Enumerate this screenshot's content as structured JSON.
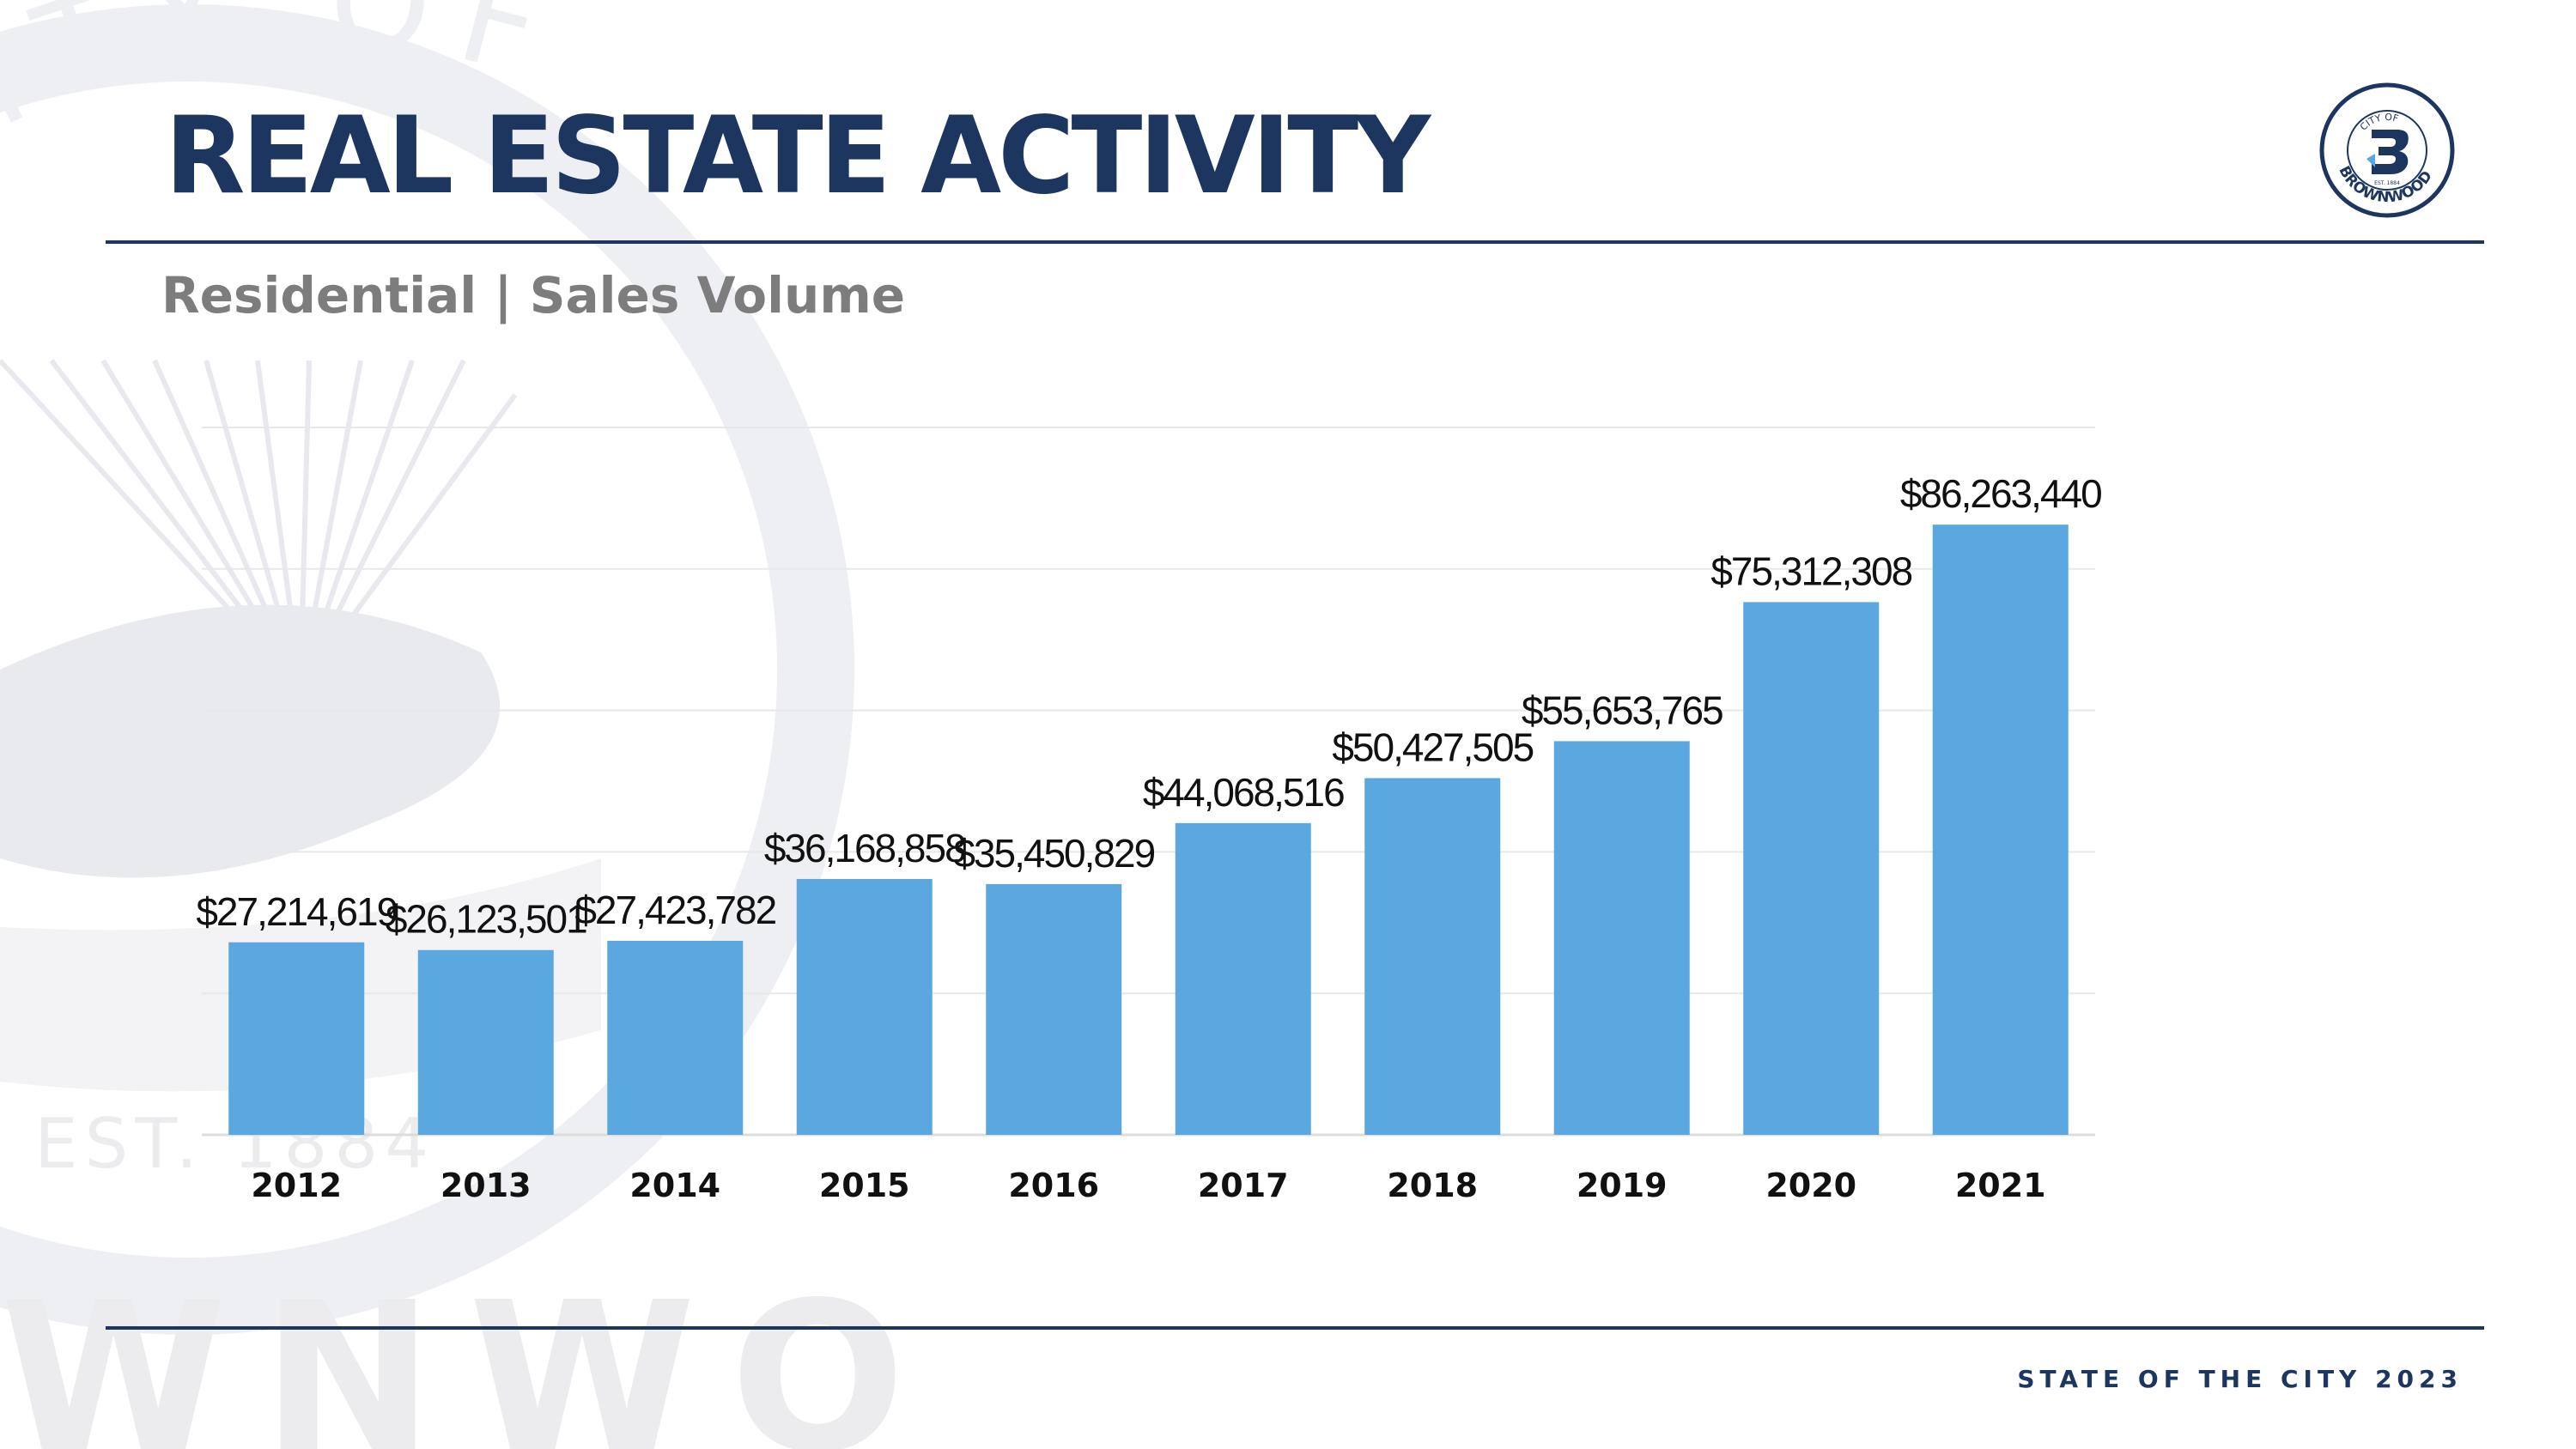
{
  "header": {
    "title": "REAL ESTATE ACTIVITY",
    "subtitle": "Residential | Sales Volume"
  },
  "logo": {
    "arc_top": "CITY OF",
    "arc_bottom": "BROWNWOOD",
    "est": "EST. 1884"
  },
  "watermark": {
    "arc_text": "ITY OF",
    "est_text": "EST. 1884",
    "bottom_text": "WNWO"
  },
  "footer": {
    "text": "STATE OF THE CITY 2023"
  },
  "colors": {
    "navy": "#1c3660",
    "bar": "#5aa8df",
    "subtitle": "#7d7d7d"
  },
  "chart_data": {
    "type": "bar",
    "title": "Residential | Sales Volume",
    "categories": [
      "2012",
      "2013",
      "2014",
      "2015",
      "2016",
      "2017",
      "2018",
      "2019",
      "2020",
      "2021"
    ],
    "values": [
      27214619,
      26123501,
      27423782,
      36168858,
      35450829,
      44068516,
      50427505,
      55653765,
      75312308,
      86263440
    ],
    "data_labels": [
      "$27,214,619",
      "$26,123,501",
      "$27,423,782",
      "$36,168,858",
      "$35,450,829",
      "$44,068,516",
      "$50,427,505",
      "$55,653,765",
      "$75,312,308",
      "$86,263,440"
    ],
    "xlabel": "",
    "ylabel": "",
    "ylim": [
      0,
      100000000
    ],
    "grid": true
  }
}
